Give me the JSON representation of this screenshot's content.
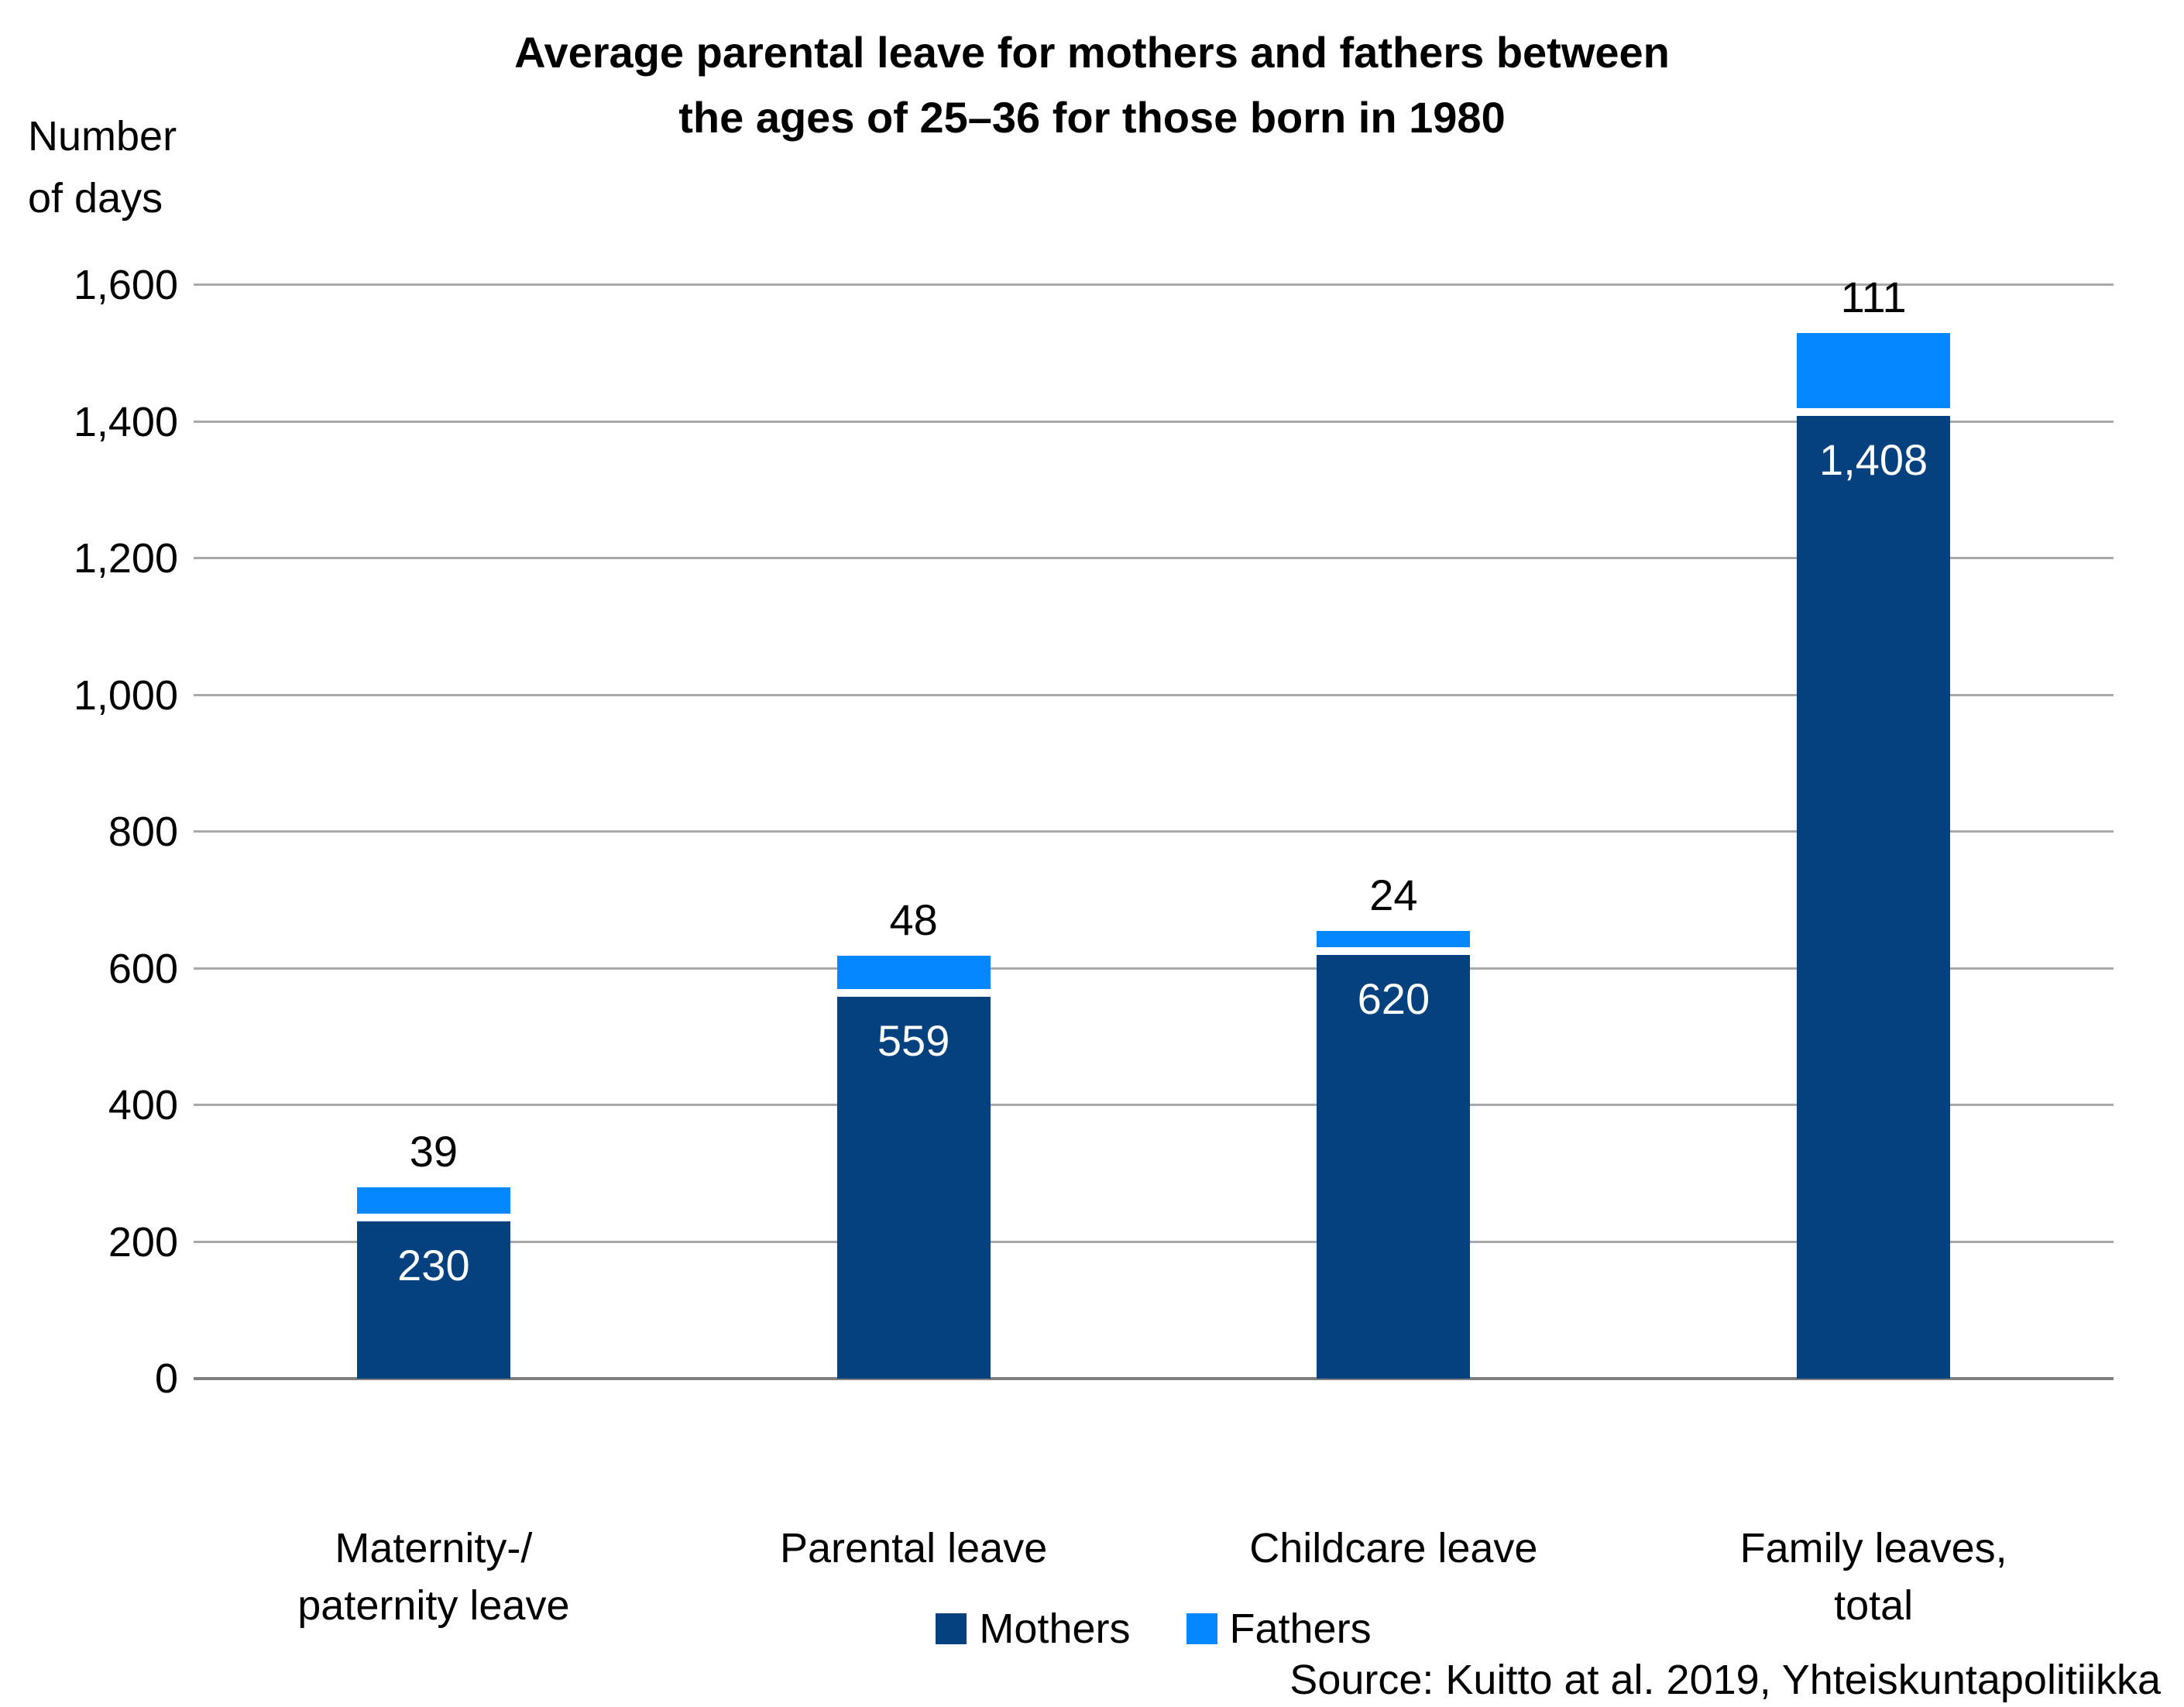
{
  "title": {
    "line1": "Average parental leave for mothers and fathers between",
    "line2": "the ages of 25–36 for those born in 1980"
  },
  "y_axis_unit": {
    "line1": "Number",
    "line2": "of days"
  },
  "legend": [
    {
      "label": "Mothers",
      "color": "#04417E"
    },
    {
      "label": "Fathers",
      "color": "#0587FF"
    }
  ],
  "source": "Source: Kuitto at al. 2019, Yhteiskuntapolitiikka",
  "colors": {
    "grid": "#A9A9A9",
    "axis": "#7F7F7F",
    "bar_value_text": "#FFFFFF"
  },
  "chart_data": {
    "type": "bar",
    "stacked": true,
    "title": "Average parental leave for mothers and fathers between the ages of 25–36 for those born in 1980",
    "ylabel": "Number of days",
    "xlabel": "",
    "ylim": [
      0,
      1600
    ],
    "ytick_step": 200,
    "yticks_labels": [
      "0",
      "200",
      "400",
      "600",
      "800",
      "1,000",
      "1,200",
      "1,400",
      "1,600"
    ],
    "grid": true,
    "legend_position": "bottom",
    "categories": [
      [
        "Maternity-/",
        "paternity leave"
      ],
      [
        "Parental leave"
      ],
      [
        "Childcare leave"
      ],
      [
        "Family leaves,",
        "total"
      ]
    ],
    "series": [
      {
        "name": "Mothers",
        "color": "#04417E",
        "values": [
          230,
          559,
          620,
          1408
        ],
        "labels": [
          "230",
          "559",
          "620",
          "1,408"
        ],
        "label_position": "inside-top",
        "label_color": "#FFFFFF"
      },
      {
        "name": "Fathers",
        "color": "#0587FF",
        "values": [
          39,
          48,
          24,
          111
        ],
        "labels": [
          "39",
          "48",
          "24",
          "111"
        ],
        "label_position": "above",
        "label_color": "#000000"
      }
    ],
    "source": "Source: Kuitto at al. 2019, Yhteiskuntapolitiikka"
  }
}
